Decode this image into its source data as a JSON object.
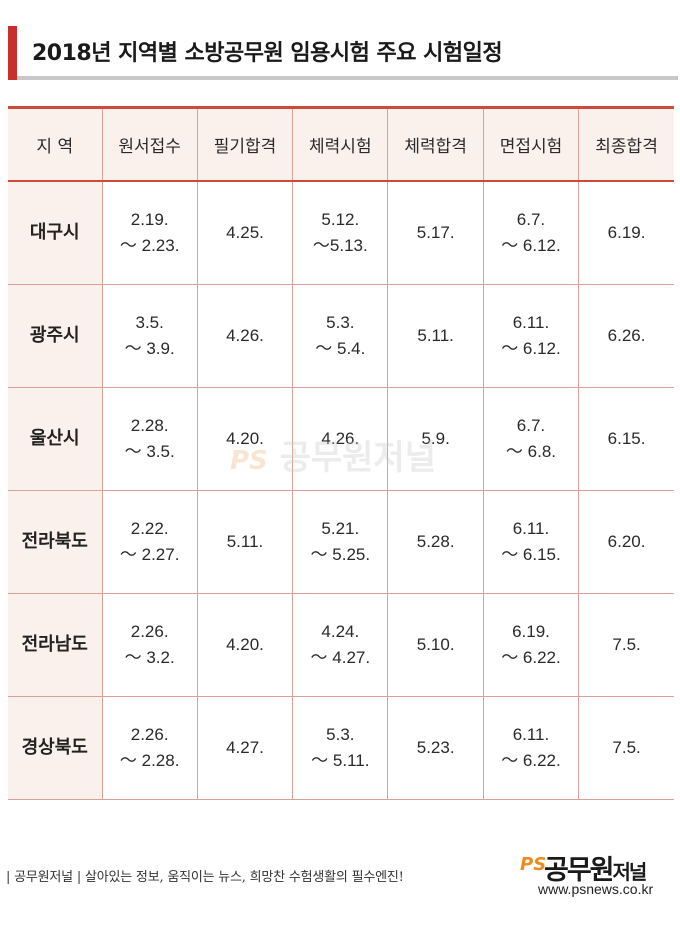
{
  "title": "2018년 지역별 소방공무원 임용시험 주요 시험일정",
  "colors": {
    "accent": "#c8302e",
    "header_bg": "#fbf1ec",
    "border": "#d9a296"
  },
  "table": {
    "headers": [
      "지 역",
      "원서접수",
      "필기합격",
      "체력시험",
      "체력합격",
      "면접시험",
      "최종합격"
    ],
    "rows": [
      {
        "region": "대구시",
        "application": [
          "2.19.",
          "～ 2.23."
        ],
        "written_pass": "4.25.",
        "fitness_test": [
          "5.12.",
          "～5.13."
        ],
        "fitness_pass": "5.17.",
        "interview": [
          "6.7.",
          "～ 6.12."
        ],
        "final_pass": "6.19."
      },
      {
        "region": "광주시",
        "application": [
          "3.5.",
          "～ 3.9."
        ],
        "written_pass": "4.26.",
        "fitness_test": [
          "5.3.",
          "～ 5.4."
        ],
        "fitness_pass": "5.11.",
        "interview": [
          "6.11.",
          "～ 6.12."
        ],
        "final_pass": "6.26."
      },
      {
        "region": "울산시",
        "application": [
          "2.28.",
          "～ 3.5."
        ],
        "written_pass": "4.20.",
        "fitness_test": [
          "4.26."
        ],
        "fitness_pass": "5.9.",
        "interview": [
          "6.7.",
          "～ 6.8."
        ],
        "final_pass": "6.15."
      },
      {
        "region": "전라북도",
        "application": [
          "2.22.",
          "～ 2.27."
        ],
        "written_pass": "5.11.",
        "fitness_test": [
          "5.21.",
          "～ 5.25."
        ],
        "fitness_pass": "5.28.",
        "interview": [
          "6.11.",
          "～ 6.15."
        ],
        "final_pass": "6.20."
      },
      {
        "region": "전라남도",
        "application": [
          "2.26.",
          "～ 3.2."
        ],
        "written_pass": "4.20.",
        "fitness_test": [
          "4.24.",
          "～ 4.27."
        ],
        "fitness_pass": "5.10.",
        "interview": [
          "6.19.",
          "～ 6.22."
        ],
        "final_pass": "7.5."
      },
      {
        "region": "경상북도",
        "application": [
          "2.26.",
          "～ 2.28."
        ],
        "written_pass": "4.27.",
        "fitness_test": [
          "5.3.",
          "～ 5.11."
        ],
        "fitness_pass": "5.23.",
        "interview": [
          "6.11.",
          "～ 6.22."
        ],
        "final_pass": "7.5."
      }
    ]
  },
  "watermark": {
    "ps": "PS",
    "text": "공무원저널"
  },
  "footer": {
    "tagline": "| 공무원저널 |  살아있는 정보, 움직이는 뉴스, 희망찬 수험생활의 필수엔진!",
    "logo_ps": "PS",
    "logo_main": "공무원",
    "logo_sub": "저널",
    "url": "www.psnews.co.kr"
  }
}
